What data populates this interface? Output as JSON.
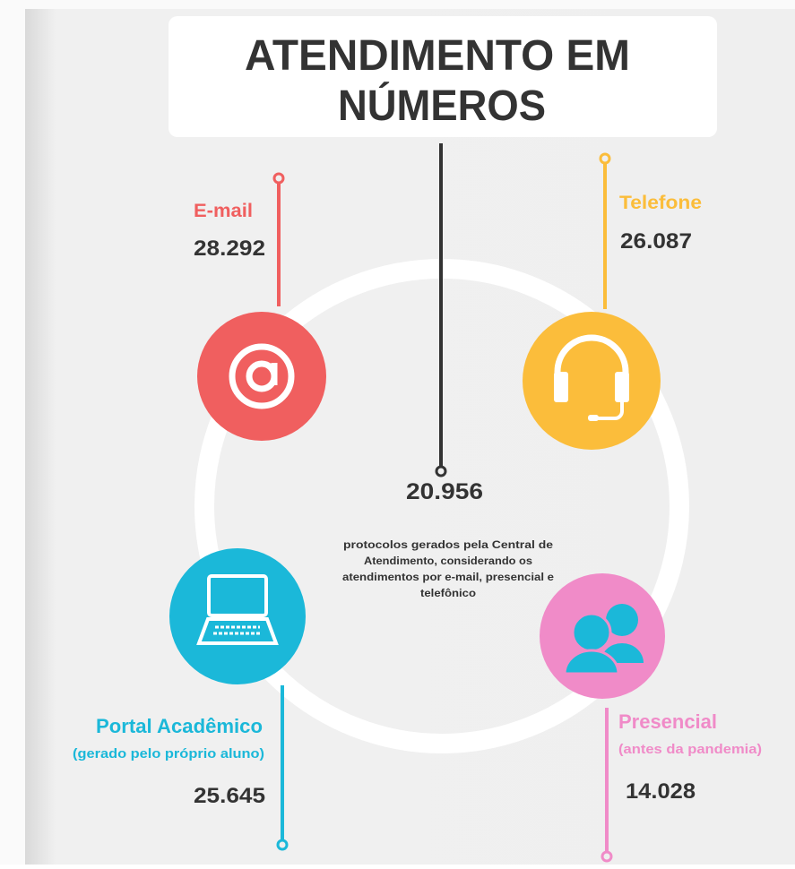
{
  "title_lines": [
    "ATENDIMENTO EM",
    "NÚMEROS"
  ],
  "center": {
    "value": "20.956",
    "description_lines": [
      "protocolos gerados pela Central de",
      "Atendimento, considerando os",
      "atendimentos por e-mail, presencial e",
      "telefônico"
    ]
  },
  "channels": [
    {
      "label": "E-mail",
      "value": "28.292"
    },
    {
      "label": "Telefone",
      "value": "26.087"
    },
    {
      "label": "Portal Acadêmico",
      "note": "(gerado pelo próprio aluno)",
      "value": "25.645"
    },
    {
      "label": "Presencial",
      "note": "(antes da pandemia)",
      "value": "14.028"
    }
  ]
}
